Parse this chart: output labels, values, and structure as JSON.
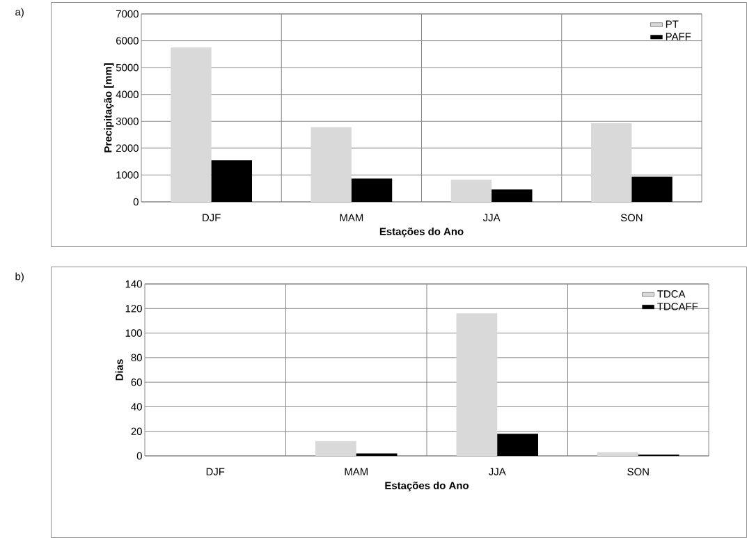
{
  "chart_data": [
    {
      "type": "bar",
      "annotations": [
        "a)"
      ],
      "xlabel": "Estações do Ano",
      "ylabel": "Precipitação [mm]",
      "categories": [
        "DJF",
        "MAM",
        "JJA",
        "SON"
      ],
      "series": [
        {
          "name": "PT",
          "color": "#d9d9d9",
          "values": [
            5750,
            2780,
            820,
            2930
          ]
        },
        {
          "name": "PAFF",
          "color": "#000000",
          "values": [
            1550,
            870,
            460,
            940
          ]
        }
      ],
      "ylim": [
        0,
        7000
      ],
      "yticks": [
        0,
        1000,
        2000,
        3000,
        4000,
        5000,
        6000,
        7000
      ],
      "grid": true,
      "legend": "top right"
    },
    {
      "type": "bar",
      "annotations": [
        "b)"
      ],
      "xlabel": "Estações do Ano",
      "ylabel": "Dias",
      "categories": [
        "DJF",
        "MAM",
        "JJA",
        "SON"
      ],
      "series": [
        {
          "name": "TDCA",
          "color": "#d9d9d9",
          "values": [
            0,
            12,
            116,
            3
          ]
        },
        {
          "name": "TDCAFF",
          "color": "#000000",
          "values": [
            0,
            2,
            18,
            1
          ]
        }
      ],
      "ylim": [
        0,
        140
      ],
      "yticks": [
        0,
        20,
        40,
        60,
        80,
        100,
        120,
        140
      ],
      "grid": true,
      "legend": "top right"
    }
  ]
}
